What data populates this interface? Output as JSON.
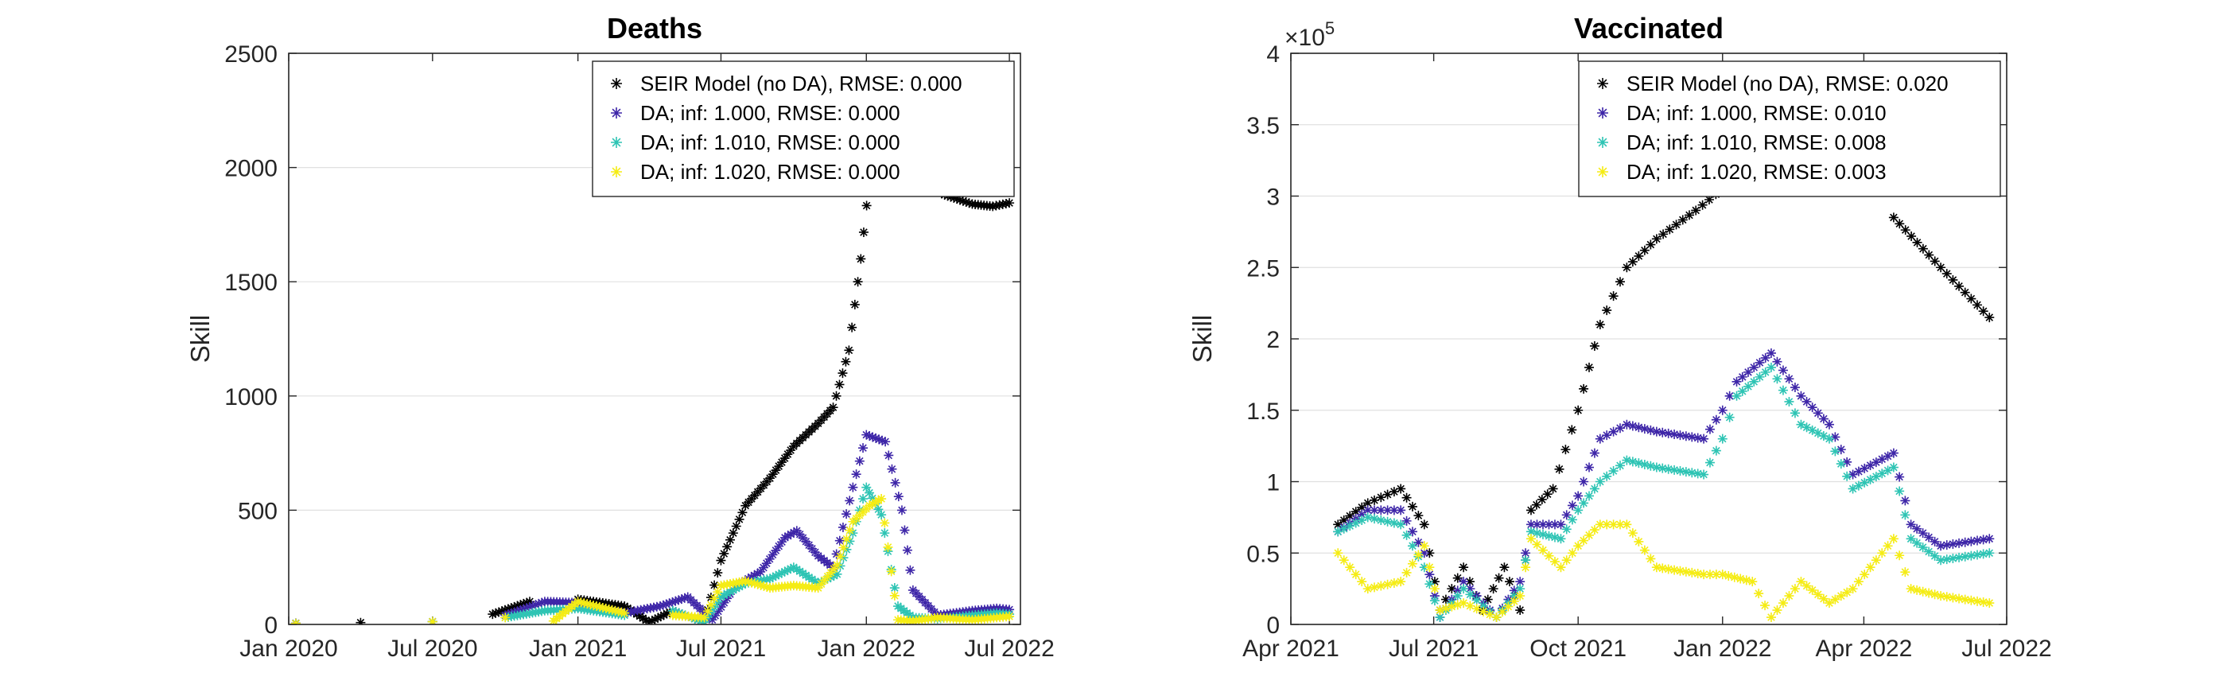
{
  "chart_data": [
    {
      "type": "scatter",
      "title": "Deaths",
      "xlabel": "",
      "ylabel": "Skill",
      "ylim": [
        0,
        2500
      ],
      "yticks": [
        0,
        500,
        1000,
        1500,
        2000,
        2500
      ],
      "xlim": [
        "2020-01-01",
        "2022-07-15"
      ],
      "xticks": [
        {
          "date": "2020-01-01",
          "label": "Jan 2020"
        },
        {
          "date": "2020-07-01",
          "label": "Jul 2020"
        },
        {
          "date": "2021-01-01",
          "label": "Jan 2021"
        },
        {
          "date": "2021-07-01",
          "label": "Jul 2021"
        },
        {
          "date": "2022-01-01",
          "label": "Jan 2022"
        },
        {
          "date": "2022-07-01",
          "label": "Jul 2022"
        }
      ],
      "grid": "y",
      "legend_position": "top-right",
      "series": [
        {
          "name": "SEIR Model (no DA), RMSE: 0.000",
          "color": "#000000",
          "points": [
            [
              "2020-01-10",
              5
            ],
            [
              "2020-04-01",
              8
            ],
            [
              "2020-07-01",
              12
            ],
            [
              "2020-09-15",
              45
            ],
            [
              "2020-11-01",
              100
            ],
            [
              "2021-01-01",
              110
            ],
            [
              "2021-03-01",
              80
            ],
            [
              "2021-04-01",
              10
            ],
            [
              "2021-05-01",
              60
            ],
            [
              "2021-06-10",
              10
            ],
            [
              "2021-07-01",
              280
            ],
            [
              "2021-08-01",
              520
            ],
            [
              "2021-09-01",
              640
            ],
            [
              "2021-10-01",
              780
            ],
            [
              "2021-11-01",
              880
            ],
            [
              "2021-11-20",
              950
            ],
            [
              "2021-12-10",
              1200
            ],
            [
              "2021-12-25",
              1600
            ],
            [
              "2022-01-05",
              1950
            ],
            [
              "2022-01-15",
              2200
            ],
            [
              "2022-02-10",
              2100
            ],
            [
              "2022-03-10",
              1950
            ],
            [
              "2022-04-10",
              1880
            ],
            [
              "2022-05-15",
              1840
            ],
            [
              "2022-06-10",
              1830
            ],
            [
              "2022-07-01",
              1845
            ]
          ]
        },
        {
          "name": "DA; inf: 1.000, RMSE: 0.000",
          "color": "#3e26a8",
          "points": [
            [
              "2020-01-10",
              4
            ],
            [
              "2020-07-01",
              12
            ],
            [
              "2020-10-01",
              40
            ],
            [
              "2020-11-20",
              100
            ],
            [
              "2021-01-01",
              95
            ],
            [
              "2021-03-01",
              50
            ],
            [
              "2021-04-15",
              80
            ],
            [
              "2021-05-20",
              120
            ],
            [
              "2021-06-20",
              20
            ],
            [
              "2021-07-20",
              170
            ],
            [
              "2021-08-20",
              230
            ],
            [
              "2021-09-20",
              380
            ],
            [
              "2021-10-05",
              410
            ],
            [
              "2021-11-01",
              300
            ],
            [
              "2021-11-20",
              250
            ],
            [
              "2021-12-15",
              600
            ],
            [
              "2022-01-01",
              830
            ],
            [
              "2022-01-25",
              800
            ],
            [
              "2022-02-15",
              500
            ],
            [
              "2022-03-01",
              150
            ],
            [
              "2022-04-01",
              40
            ],
            [
              "2022-05-15",
              60
            ],
            [
              "2022-06-15",
              70
            ],
            [
              "2022-07-01",
              65
            ]
          ]
        },
        {
          "name": "DA; inf: 1.010, RMSE: 0.000",
          "color": "#2ec4b4",
          "points": [
            [
              "2020-01-10",
              4
            ],
            [
              "2020-07-01",
              12
            ],
            [
              "2020-10-01",
              30
            ],
            [
              "2020-11-20",
              60
            ],
            [
              "2021-01-01",
              70
            ],
            [
              "2021-03-01",
              40
            ],
            [
              "2021-05-01",
              60
            ],
            [
              "2021-06-10",
              10
            ],
            [
              "2021-07-01",
              120
            ],
            [
              "2021-08-01",
              180
            ],
            [
              "2021-09-01",
              200
            ],
            [
              "2021-10-01",
              250
            ],
            [
              "2021-11-01",
              180
            ],
            [
              "2021-11-25",
              220
            ],
            [
              "2021-12-15",
              400
            ],
            [
              "2022-01-01",
              600
            ],
            [
              "2022-01-20",
              480
            ],
            [
              "2022-02-10",
              80
            ],
            [
              "2022-03-01",
              30
            ],
            [
              "2022-04-01",
              25
            ],
            [
              "2022-05-15",
              40
            ],
            [
              "2022-06-15",
              50
            ],
            [
              "2022-07-01",
              45
            ]
          ]
        },
        {
          "name": "DA; inf: 1.020, RMSE: 0.000",
          "color": "#f5ec14",
          "points": [
            [
              "2020-01-10",
              4
            ],
            [
              "2020-07-01",
              12
            ],
            [
              "2020-10-01",
              30
            ],
            [
              "2020-12-01",
              15
            ],
            [
              "2021-01-01",
              100
            ],
            [
              "2021-03-01",
              50
            ],
            [
              "2021-05-01",
              40
            ],
            [
              "2021-06-10",
              30
            ],
            [
              "2021-07-01",
              170
            ],
            [
              "2021-08-01",
              190
            ],
            [
              "2021-09-01",
              160
            ],
            [
              "2021-10-01",
              170
            ],
            [
              "2021-11-01",
              160
            ],
            [
              "2021-11-25",
              260
            ],
            [
              "2021-12-15",
              450
            ],
            [
              "2022-01-05",
              520
            ],
            [
              "2022-01-20",
              550
            ],
            [
              "2022-02-10",
              20
            ],
            [
              "2022-03-01",
              15
            ],
            [
              "2022-04-01",
              30
            ],
            [
              "2022-05-15",
              20
            ],
            [
              "2022-06-15",
              30
            ],
            [
              "2022-07-01",
              35
            ]
          ]
        }
      ]
    },
    {
      "type": "scatter",
      "title": "Vaccinated",
      "xlabel": "",
      "ylabel": "Skill",
      "ylim": [
        0,
        4
      ],
      "yticks": [
        {
          "value": 0,
          "label": "0"
        },
        {
          "value": 0.5,
          "label": "0.5"
        },
        {
          "value": 1,
          "label": "1"
        },
        {
          "value": 1.5,
          "label": "1.5"
        },
        {
          "value": 2,
          "label": "2"
        },
        {
          "value": 2.5,
          "label": "2.5"
        },
        {
          "value": 3,
          "label": "3"
        },
        {
          "value": 3.5,
          "label": "3.5"
        },
        {
          "value": 4,
          "label": "4"
        }
      ],
      "exponent_base": "×10",
      "exponent_power": "5",
      "xlim": [
        "2021-04-01",
        "2022-07-01"
      ],
      "xticks": [
        {
          "date": "2021-04-01",
          "label": "Apr 2021"
        },
        {
          "date": "2021-07-01",
          "label": "Jul 2021"
        },
        {
          "date": "2021-10-01",
          "label": "Oct 2021"
        },
        {
          "date": "2022-01-01",
          "label": "Jan 2022"
        },
        {
          "date": "2022-04-01",
          "label": "Apr 2022"
        },
        {
          "date": "2022-07-01",
          "label": "Jul 2022"
        }
      ],
      "grid": "y",
      "legend_position": "top-right",
      "series": [
        {
          "name": "SEIR Model (no DA), RMSE: 0.020",
          "color": "#000000",
          "points": [
            [
              "2021-05-01",
              0.7
            ],
            [
              "2021-05-20",
              0.85
            ],
            [
              "2021-06-10",
              0.95
            ],
            [
              "2021-06-25",
              0.7
            ],
            [
              "2021-07-05",
              0.1
            ],
            [
              "2021-07-20",
              0.4
            ],
            [
              "2021-08-01",
              0.1
            ],
            [
              "2021-08-15",
              0.4
            ],
            [
              "2021-08-25",
              0.1
            ],
            [
              "2021-09-01",
              0.8
            ],
            [
              "2021-09-15",
              0.95
            ],
            [
              "2021-10-01",
              1.5
            ],
            [
              "2021-10-15",
              2.1
            ],
            [
              "2021-11-01",
              2.5
            ],
            [
              "2021-11-20",
              2.7
            ],
            [
              "2021-12-15",
              2.9
            ],
            [
              "2022-01-01",
              3.05
            ],
            [
              "2022-01-10",
              3.2
            ],
            [
              "2022-01-20",
              3.3
            ],
            [
              "2022-04-20",
              2.85
            ],
            [
              "2022-05-20",
              2.5
            ],
            [
              "2022-06-20",
              2.15
            ]
          ]
        },
        {
          "name": "DA; inf: 1.000, RMSE: 0.010",
          "color": "#3e26a8",
          "points": [
            [
              "2021-05-01",
              0.65
            ],
            [
              "2021-05-20",
              0.8
            ],
            [
              "2021-06-10",
              0.8
            ],
            [
              "2021-06-25",
              0.5
            ],
            [
              "2021-07-05",
              0.05
            ],
            [
              "2021-07-20",
              0.3
            ],
            [
              "2021-08-10",
              0.05
            ],
            [
              "2021-08-25",
              0.3
            ],
            [
              "2021-09-01",
              0.7
            ],
            [
              "2021-09-20",
              0.7
            ],
            [
              "2021-10-01",
              0.9
            ],
            [
              "2021-10-15",
              1.3
            ],
            [
              "2021-11-01",
              1.4
            ],
            [
              "2021-11-20",
              1.35
            ],
            [
              "2021-12-20",
              1.3
            ],
            [
              "2022-01-01",
              1.5
            ],
            [
              "2022-01-10",
              1.7
            ],
            [
              "2022-02-01",
              1.9
            ],
            [
              "2022-02-20",
              1.6
            ],
            [
              "2022-03-10",
              1.4
            ],
            [
              "2022-03-25",
              1.05
            ],
            [
              "2022-04-20",
              1.2
            ],
            [
              "2022-05-01",
              0.7
            ],
            [
              "2022-05-20",
              0.55
            ],
            [
              "2022-06-20",
              0.6
            ]
          ]
        },
        {
          "name": "DA; inf: 1.010, RMSE: 0.008",
          "color": "#2ec4b4",
          "points": [
            [
              "2021-05-01",
              0.65
            ],
            [
              "2021-05-20",
              0.75
            ],
            [
              "2021-06-10",
              0.7
            ],
            [
              "2021-06-25",
              0.4
            ],
            [
              "2021-07-05",
              0.05
            ],
            [
              "2021-07-20",
              0.25
            ],
            [
              "2021-08-10",
              0.05
            ],
            [
              "2021-08-25",
              0.25
            ],
            [
              "2021-09-01",
              0.65
            ],
            [
              "2021-09-20",
              0.6
            ],
            [
              "2021-10-01",
              0.8
            ],
            [
              "2021-10-15",
              1.0
            ],
            [
              "2021-11-01",
              1.15
            ],
            [
              "2021-11-20",
              1.1
            ],
            [
              "2021-12-20",
              1.05
            ],
            [
              "2022-01-01",
              1.3
            ],
            [
              "2022-01-10",
              1.6
            ],
            [
              "2022-02-01",
              1.8
            ],
            [
              "2022-02-20",
              1.4
            ],
            [
              "2022-03-10",
              1.3
            ],
            [
              "2022-03-25",
              0.95
            ],
            [
              "2022-04-20",
              1.1
            ],
            [
              "2022-05-01",
              0.6
            ],
            [
              "2022-05-20",
              0.45
            ],
            [
              "2022-06-20",
              0.5
            ]
          ]
        },
        {
          "name": "DA; inf: 1.020, RMSE: 0.003",
          "color": "#f5ec14",
          "points": [
            [
              "2021-05-01",
              0.5
            ],
            [
              "2021-05-20",
              0.25
            ],
            [
              "2021-06-10",
              0.3
            ],
            [
              "2021-06-25",
              0.55
            ],
            [
              "2021-07-05",
              0.1
            ],
            [
              "2021-07-20",
              0.15
            ],
            [
              "2021-08-10",
              0.05
            ],
            [
              "2021-08-25",
              0.2
            ],
            [
              "2021-09-01",
              0.6
            ],
            [
              "2021-09-20",
              0.4
            ],
            [
              "2021-10-01",
              0.55
            ],
            [
              "2021-10-15",
              0.7
            ],
            [
              "2021-11-01",
              0.7
            ],
            [
              "2021-11-20",
              0.4
            ],
            [
              "2021-12-20",
              0.35
            ],
            [
              "2022-01-01",
              0.35
            ],
            [
              "2022-01-20",
              0.3
            ],
            [
              "2022-02-01",
              0.05
            ],
            [
              "2022-02-20",
              0.3
            ],
            [
              "2022-03-10",
              0.15
            ],
            [
              "2022-03-25",
              0.25
            ],
            [
              "2022-04-20",
              0.6
            ],
            [
              "2022-05-01",
              0.25
            ],
            [
              "2022-05-20",
              0.2
            ],
            [
              "2022-06-20",
              0.15
            ]
          ]
        }
      ]
    }
  ]
}
